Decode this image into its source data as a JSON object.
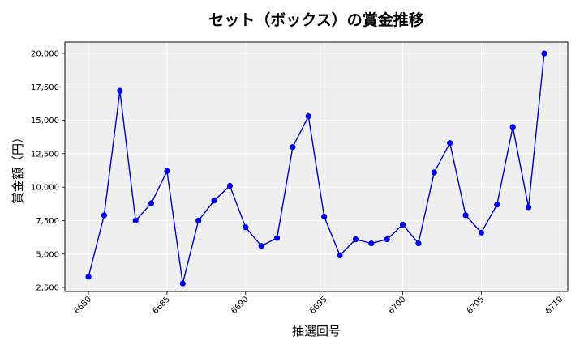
{
  "chart_data": {
    "type": "line",
    "title": "セット（ボックス）の賞金推移",
    "xlabel": "抽選回号",
    "ylabel": "賞金額（円）",
    "xlim": [
      6678.5,
      6710.5
    ],
    "ylim": [
      2200,
      20850
    ],
    "x_ticks": [
      6680,
      6685,
      6690,
      6695,
      6700,
      6705,
      6710
    ],
    "x_tick_labels": [
      "6680",
      "6685",
      "6690",
      "6695",
      "6700",
      "6705",
      "6710"
    ],
    "y_ticks": [
      2500,
      5000,
      7500,
      10000,
      12500,
      15000,
      17500,
      20000
    ],
    "y_tick_labels": [
      "2,500",
      "5,000",
      "7,500",
      "10,000",
      "12,500",
      "15,000",
      "17,500",
      "20,000"
    ],
    "grid": true,
    "background": "#efefef",
    "line_color": "#0000cc",
    "marker_color": "#0000ee",
    "series": [
      {
        "x": [
          6680,
          6681,
          6682,
          6683,
          6684,
          6685,
          6686,
          6687,
          6688,
          6689,
          6690,
          6691,
          6692,
          6693,
          6694,
          6695,
          6696,
          6697,
          6698,
          6699,
          6700,
          6701,
          6702,
          6703,
          6704,
          6705,
          6706,
          6707,
          6708,
          6709
        ],
        "values": [
          3300,
          7900,
          17200,
          7500,
          8800,
          11200,
          2800,
          7500,
          9000,
          10100,
          7000,
          5600,
          6200,
          13000,
          15300,
          7800,
          4900,
          6100,
          5800,
          6100,
          7200,
          5800,
          11100,
          13300,
          7900,
          6600,
          8700,
          14500,
          8500,
          20000
        ]
      }
    ]
  }
}
